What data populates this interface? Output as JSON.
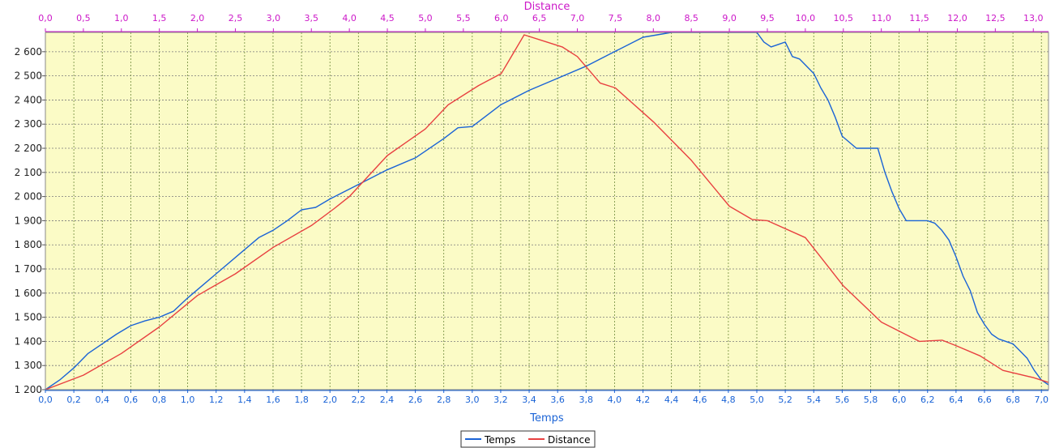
{
  "chart_data": {
    "type": "line",
    "x_axis_bottom": {
      "label": "Temps",
      "range": [
        0.0,
        7.05
      ],
      "ticks": [
        "0,0",
        "0,2",
        "0,4",
        "0,6",
        "0,8",
        "1,0",
        "1,2",
        "1,4",
        "1,6",
        "1,8",
        "2,0",
        "2,2",
        "2,4",
        "2,6",
        "2,8",
        "3,0",
        "3,2",
        "3,4",
        "3,6",
        "3,8",
        "4,0",
        "4,2",
        "4,4",
        "4,6",
        "4,8",
        "5,0",
        "5,2",
        "5,4",
        "5,6",
        "5,8",
        "6,0",
        "6,2",
        "6,4",
        "6,6",
        "6,8",
        "7,0"
      ],
      "color": "#1a63d6"
    },
    "x_axis_top": {
      "label": "Distance",
      "range": [
        0.0,
        13.2
      ],
      "ticks": [
        "0,0",
        "0,5",
        "1,0",
        "1,5",
        "2,0",
        "2,5",
        "3,0",
        "3,5",
        "4,0",
        "4,5",
        "5,0",
        "5,5",
        "6,0",
        "6,5",
        "7,0",
        "7,5",
        "8,0",
        "8,5",
        "9,0",
        "9,5",
        "10,0",
        "10,5",
        "11,0",
        "11,5",
        "12,0",
        "12,5",
        "13,0"
      ],
      "color": "#cc18c8"
    },
    "y_axis": {
      "range": [
        1200,
        2680
      ],
      "ticks": [
        "1 200",
        "1 300",
        "1 400",
        "1 500",
        "1 600",
        "1 700",
        "1 800",
        "1 900",
        "2 000",
        "2 100",
        "2 200",
        "2 300",
        "2 400",
        "2 500",
        "2 600"
      ]
    },
    "grid": true,
    "legend_position": "bottom-center",
    "plot_background": "#fbfbc6",
    "series": [
      {
        "name": "Temps",
        "axis": "bottom",
        "color": "#1a63d6",
        "x": [
          0.0,
          0.1,
          0.2,
          0.3,
          0.4,
          0.5,
          0.6,
          0.7,
          0.8,
          0.9,
          1.0,
          1.2,
          1.4,
          1.5,
          1.6,
          1.7,
          1.8,
          1.9,
          2.0,
          2.2,
          2.4,
          2.6,
          2.8,
          2.9,
          3.0,
          3.2,
          3.4,
          3.6,
          3.8,
          4.0,
          4.2,
          4.4,
          4.6,
          4.8,
          5.0,
          5.05,
          5.1,
          5.15,
          5.2,
          5.25,
          5.3,
          5.4,
          5.45,
          5.5,
          5.55,
          5.6,
          5.7,
          5.8,
          5.85,
          5.9,
          5.95,
          6.0,
          6.05,
          6.1,
          6.2,
          6.25,
          6.3,
          6.35,
          6.4,
          6.45,
          6.5,
          6.55,
          6.6,
          6.65,
          6.7,
          6.8,
          6.85,
          6.9,
          6.95,
          7.0,
          7.05
        ],
        "y": [
          1200,
          1240,
          1290,
          1350,
          1390,
          1430,
          1465,
          1485,
          1500,
          1525,
          1580,
          1680,
          1780,
          1830,
          1860,
          1900,
          1945,
          1955,
          1990,
          2050,
          2110,
          2160,
          2240,
          2285,
          2290,
          2380,
          2440,
          2490,
          2540,
          2600,
          2660,
          2680,
          2680,
          2680,
          2680,
          2640,
          2620,
          2630,
          2640,
          2580,
          2570,
          2510,
          2450,
          2400,
          2330,
          2250,
          2200,
          2200,
          2200,
          2100,
          2020,
          1950,
          1900,
          1900,
          1900,
          1890,
          1860,
          1820,
          1750,
          1670,
          1610,
          1520,
          1470,
          1430,
          1410,
          1390,
          1360,
          1330,
          1280,
          1240,
          1220
        ]
      },
      {
        "name": "Distance",
        "axis": "top",
        "color": "#e84040",
        "x": [
          0.0,
          0.5,
          1.0,
          1.5,
          2.0,
          2.5,
          3.0,
          3.5,
          3.8,
          4.0,
          4.5,
          5.0,
          5.3,
          5.7,
          6.0,
          6.3,
          6.6,
          6.8,
          7.0,
          7.3,
          7.5,
          8.0,
          8.5,
          9.0,
          9.3,
          9.5,
          10.0,
          10.5,
          11.0,
          11.5,
          11.8,
          12.0,
          12.3,
          12.6,
          13.0,
          13.2
        ],
        "y": [
          1200,
          1260,
          1350,
          1460,
          1590,
          1680,
          1790,
          1880,
          1950,
          2000,
          2170,
          2280,
          2380,
          2460,
          2510,
          2670,
          2640,
          2620,
          2580,
          2470,
          2450,
          2310,
          2150,
          1960,
          1905,
          1900,
          1830,
          1630,
          1480,
          1400,
          1405,
          1380,
          1340,
          1280,
          1250,
          1230
        ]
      }
    ]
  }
}
